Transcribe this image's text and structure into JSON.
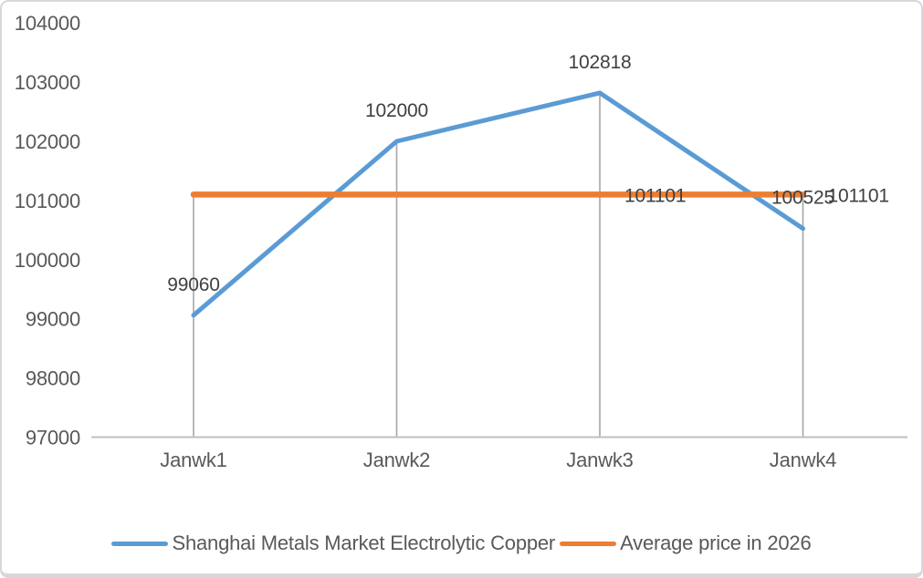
{
  "window": {
    "background": "#FFFFFF",
    "border_color": "#D8D8D8"
  },
  "chart_data": {
    "type": "line",
    "title": "",
    "categories": [
      "Janwk1",
      "Janwk2",
      "Janwk3",
      "Janwk4"
    ],
    "series": [
      {
        "name": "Shanghai Metals Market Electrolytic Copper",
        "color": "#5B9BD5",
        "values": [
          99060,
          102000,
          102818,
          100525
        ],
        "data_labels": [
          {
            "index": 0,
            "text": "99060",
            "position": "above"
          },
          {
            "index": 1,
            "text": "102000",
            "position": "above"
          },
          {
            "index": 2,
            "text": "102818",
            "position": "above"
          },
          {
            "index": 3,
            "text": "100525",
            "position": "above"
          }
        ]
      },
      {
        "name": "Average price in 2026",
        "color": "#ED7D31",
        "values": [
          101101,
          101101,
          101101,
          101101
        ],
        "data_labels": [
          {
            "index": 2,
            "text": "101101",
            "position": "right"
          },
          {
            "index": 3,
            "text": "101101",
            "position": "right"
          }
        ]
      }
    ],
    "ylim": [
      97000,
      104000
    ],
    "ytick_step": 1000,
    "yticks": [
      "104000",
      "103000",
      "102000",
      "101000",
      "100000",
      "99000",
      "98000",
      "97000"
    ],
    "grid": "off",
    "drop_lines": true,
    "legend_position": "bottom",
    "axis_color": "#BFBFBF",
    "drop_line_color": "#A6A6A6",
    "tick_label_color": "#595959",
    "data_label_color": "#404040"
  }
}
